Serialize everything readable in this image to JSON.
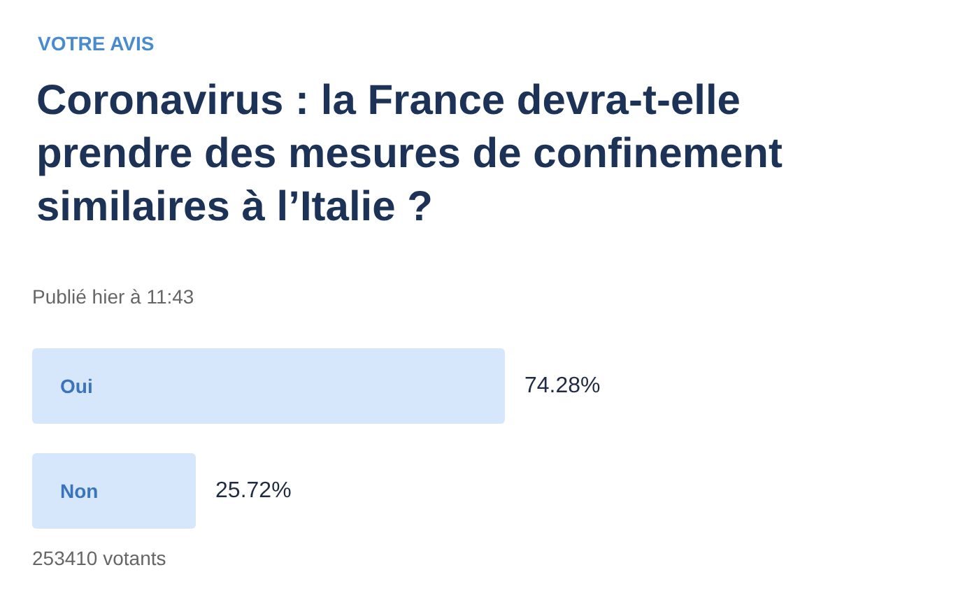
{
  "chart_data": {
    "type": "bar",
    "orientation": "horizontal",
    "subtitle": "VOTRE AVIS",
    "title": "Coronavirus : la France devra-t-elle prendre des mesures de confinement similaires à l’Italie ?",
    "annotations": [
      "Publié hier à 11:43",
      "253410 votants"
    ],
    "categories": [
      "Oui",
      "Non"
    ],
    "values": [
      74.28,
      25.72
    ],
    "value_labels": [
      "74.28%",
      "25.72%"
    ],
    "color": "#d6e7fc"
  }
}
